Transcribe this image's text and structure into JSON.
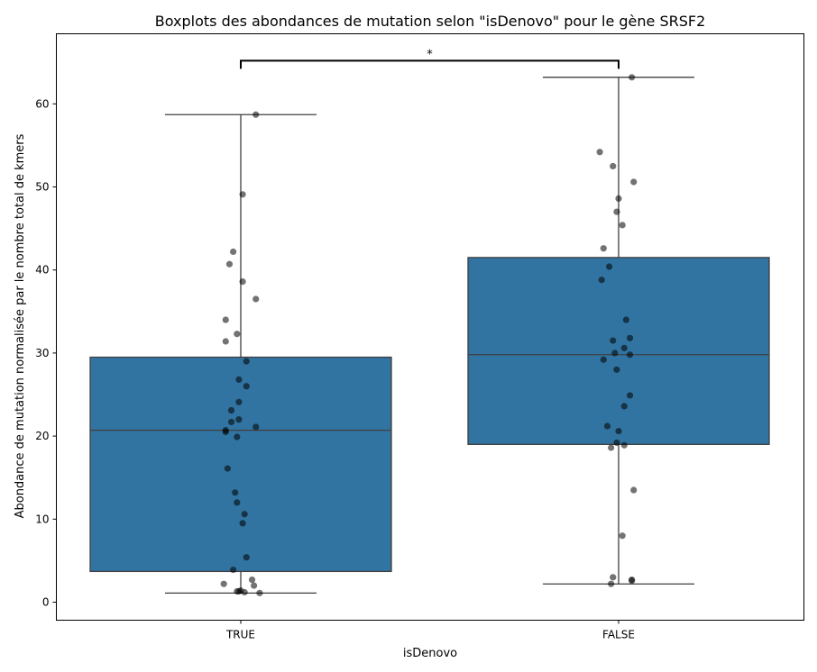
{
  "chart_data": {
    "type": "boxplot",
    "title": "Boxplots des abondances de mutation selon \"isDenovo\" pour le gène SRSF2",
    "xlabel": "isDenovo",
    "ylabel": "Abondance de mutation normalisée par le nombre total de kmers",
    "categories": [
      "TRUE",
      "FALSE"
    ],
    "ylim": [
      -2.2,
      68.3
    ],
    "yticks": [
      0,
      10,
      20,
      30,
      40,
      50,
      60
    ],
    "ytick_labels": [
      "0",
      "10",
      "20",
      "30",
      "40",
      "50",
      "60"
    ],
    "grid": false,
    "box_color": "#3274a1",
    "line_color": "#3f3f3f",
    "point_color": "#000000",
    "significance": {
      "label": "*",
      "between": [
        "TRUE",
        "FALSE"
      ],
      "y": 65.2
    },
    "boxes": [
      {
        "category": "TRUE",
        "whisker_low": 1.1,
        "q1": 3.7,
        "median": 20.7,
        "q3": 29.5,
        "whisker_high": 58.7
      },
      {
        "category": "FALSE",
        "whisker_low": 2.2,
        "q1": 19.0,
        "median": 29.8,
        "q3": 41.5,
        "whisker_high": 63.2
      }
    ],
    "points": [
      {
        "category": "TRUE",
        "values": [
          58.7,
          49.1,
          42.2,
          40.7,
          38.6,
          36.5,
          34.0,
          32.3,
          31.4,
          29.0,
          26.8,
          26.0,
          24.1,
          23.1,
          22.0,
          21.7,
          21.1,
          20.7,
          20.5,
          19.9,
          16.1,
          13.2,
          12.0,
          10.6,
          9.5,
          5.4,
          3.9,
          2.7,
          2.2,
          2.0,
          1.4,
          1.3,
          1.3,
          1.2,
          1.1
        ],
        "jitter": [
          0.08,
          0.01,
          -0.04,
          -0.06,
          0.01,
          0.08,
          -0.08,
          -0.02,
          -0.08,
          0.03,
          -0.01,
          0.03,
          -0.01,
          -0.05,
          -0.01,
          -0.05,
          0.08,
          -0.08,
          -0.08,
          -0.02,
          -0.07,
          -0.03,
          -0.02,
          0.02,
          0.01,
          0.03,
          -0.04,
          0.06,
          -0.09,
          0.07,
          0.0,
          -0.02,
          -0.01,
          0.02,
          0.1
        ]
      },
      {
        "category": "FALSE",
        "values": [
          63.2,
          54.2,
          52.5,
          50.6,
          48.6,
          47.0,
          45.4,
          42.6,
          40.4,
          38.8,
          34.0,
          31.8,
          31.5,
          30.6,
          30.0,
          29.8,
          29.2,
          28.0,
          24.9,
          23.6,
          21.2,
          20.6,
          19.2,
          18.9,
          18.6,
          13.5,
          8.0,
          3.0,
          2.7,
          2.6,
          2.2
        ],
        "jitter": [
          0.07,
          -0.1,
          -0.03,
          0.08,
          0.0,
          -0.01,
          0.02,
          -0.08,
          -0.05,
          -0.09,
          0.04,
          0.06,
          -0.03,
          0.03,
          -0.02,
          0.06,
          -0.08,
          -0.01,
          0.06,
          0.03,
          -0.06,
          0.0,
          -0.01,
          0.03,
          -0.04,
          0.08,
          0.02,
          -0.03,
          0.07,
          0.07,
          -0.04
        ]
      }
    ]
  }
}
